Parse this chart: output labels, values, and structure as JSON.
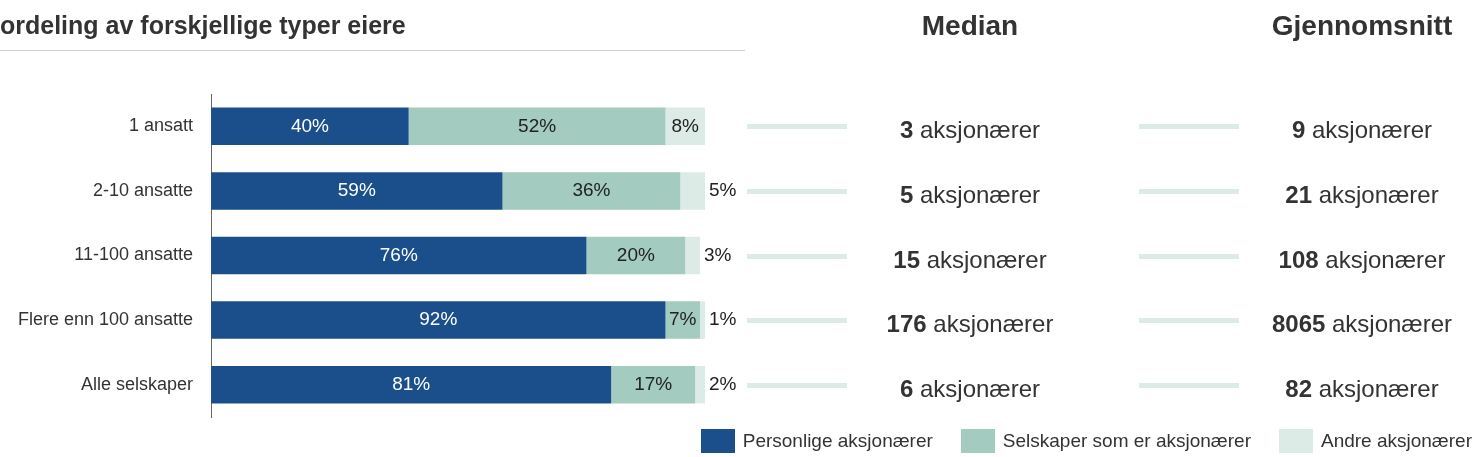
{
  "chart_data": [
    {
      "type": "bar",
      "orientation": "horizontal",
      "stacked": true,
      "title": "ordeling av forskjellige typer eiere",
      "categories": [
        "1 ansatt",
        "2-10 ansatte",
        "11-100 ansatte",
        "Flere enn 100 ansatte",
        "Alle selskaper"
      ],
      "legend": "bottom right",
      "series": [
        {
          "name": "Personlige aksjonærer",
          "color": "#1a4f8b",
          "values": [
            40,
            59,
            76,
            92,
            81
          ],
          "value_labels": [
            "40%",
            "59%",
            "76%",
            "92%",
            "81%"
          ]
        },
        {
          "name": "Selskaper som er aksjonærer",
          "color": "#a3cbbf",
          "values": [
            52,
            36,
            20,
            7,
            17
          ],
          "value_labels": [
            "52%",
            "36%",
            "20%",
            "7%",
            "17%"
          ]
        },
        {
          "name": "Andre aksjonærer",
          "color": "#dcebe6",
          "values": [
            8,
            5,
            3,
            1,
            2
          ],
          "value_labels": [
            "8%",
            "5%",
            "3%",
            "1%",
            "2%"
          ]
        }
      ]
    },
    {
      "type": "other",
      "title": "Median",
      "annotations": [
        "3 aksjonærer",
        "5 aksjonærer",
        "15 aksjonærer",
        "176 aksjonærer",
        "6 aksjonærer"
      ]
    },
    {
      "type": "other",
      "title": "Gjennomsnitt",
      "annotations": [
        "9 aksjonærer",
        "21 aksjonærer",
        "108 aksjonærer",
        "8065 aksjonærer",
        "82 aksjonærer"
      ]
    }
  ]
}
